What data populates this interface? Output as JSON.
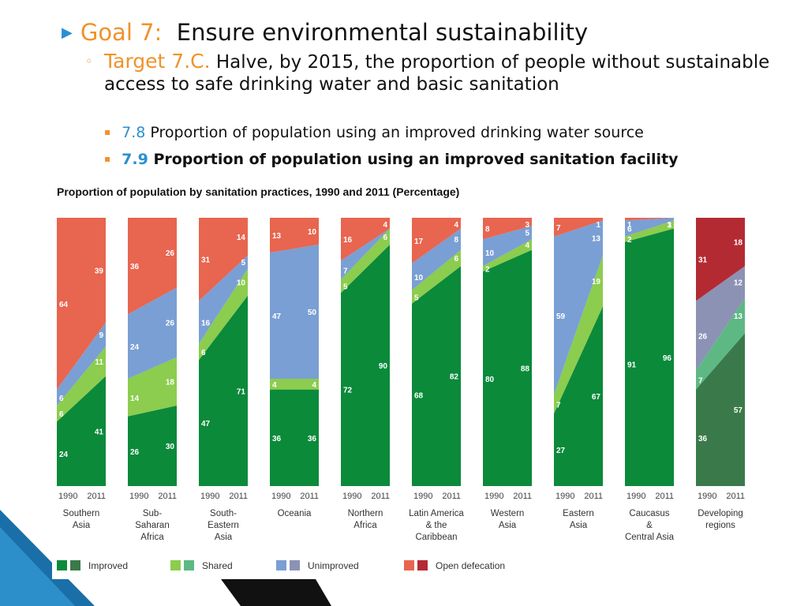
{
  "slide": {
    "goal_label": "Goal 7:",
    "goal_text": "Ensure environmental sustainability",
    "target_label": "Target 7.C.",
    "target_text": "Halve, by 2015, the proportion of people without sustainable access to safe drinking water and basic sanitation",
    "indicators": [
      {
        "num": "7.8",
        "text": "Proportion of population using an improved drinking water source"
      },
      {
        "num": "7.9",
        "text": "Proportion of population using an improved sanitation facility"
      }
    ]
  },
  "colors": {
    "improved": "#0b8a3a",
    "shared": "#8ccc4e",
    "unimproved": "#7a9fd4",
    "open": "#e8654f",
    "dev_improved": "#3a7a4a",
    "dev_shared": "#5db884",
    "dev_unimproved": "#8c92b4",
    "dev_open": "#b42a33"
  },
  "chart_data": {
    "type": "area",
    "title": "Proportion of population by sanitation practices, 1990 and 2011 (Percentage)",
    "years": [
      "1990",
      "2011"
    ],
    "series_names": [
      "Improved",
      "Shared",
      "Unimproved",
      "Open defecation"
    ],
    "regions": [
      {
        "label": [
          "Southern",
          "Asia"
        ],
        "values": {
          "1990": [
            24,
            6,
            6,
            64
          ],
          "2011": [
            41,
            11,
            9,
            39
          ]
        }
      },
      {
        "label": [
          "Sub-",
          "Saharan",
          "Africa"
        ],
        "values": {
          "1990": [
            26,
            14,
            24,
            36
          ],
          "2011": [
            30,
            18,
            26,
            26
          ]
        }
      },
      {
        "label": [
          "South-",
          "Eastern",
          "Asia"
        ],
        "values": {
          "1990": [
            47,
            6,
            16,
            31
          ],
          "2011": [
            71,
            10,
            5,
            14
          ]
        }
      },
      {
        "label": [
          "Oceania"
        ],
        "values": {
          "1990": [
            36,
            4,
            47,
            13
          ],
          "2011": [
            36,
            4,
            50,
            10
          ]
        }
      },
      {
        "label": [
          "Northern",
          "Africa"
        ],
        "values": {
          "1990": [
            72,
            5,
            7,
            16
          ],
          "2011": [
            90,
            6,
            0,
            4
          ]
        }
      },
      {
        "label": [
          "Latin America",
          "& the",
          "Caribbean"
        ],
        "values": {
          "1990": [
            68,
            5,
            10,
            17
          ],
          "2011": [
            82,
            6,
            8,
            4
          ]
        }
      },
      {
        "label": [
          "Western",
          "Asia"
        ],
        "values": {
          "1990": [
            80,
            2,
            10,
            8
          ],
          "2011": [
            88,
            4,
            5,
            3
          ]
        }
      },
      {
        "label": [
          "Eastern",
          "Asia"
        ],
        "values": {
          "1990": [
            27,
            7,
            59,
            7
          ],
          "2011": [
            67,
            19,
            13,
            1
          ]
        }
      },
      {
        "label": [
          "Caucasus",
          "&",
          "Central Asia"
        ],
        "values": {
          "1990": [
            91,
            2,
            6,
            1
          ],
          "2011": [
            96,
            3,
            1,
            0
          ]
        }
      },
      {
        "label": [
          "Developing",
          "regions"
        ],
        "developing": true,
        "values": {
          "1990": [
            36,
            7,
            26,
            31
          ],
          "2011": [
            57,
            13,
            12,
            18
          ]
        }
      }
    ],
    "ylim": [
      0,
      100
    ],
    "legend": [
      "Improved",
      "Shared",
      "Unimproved",
      "Open defecation"
    ],
    "legend_position": "bottom"
  }
}
